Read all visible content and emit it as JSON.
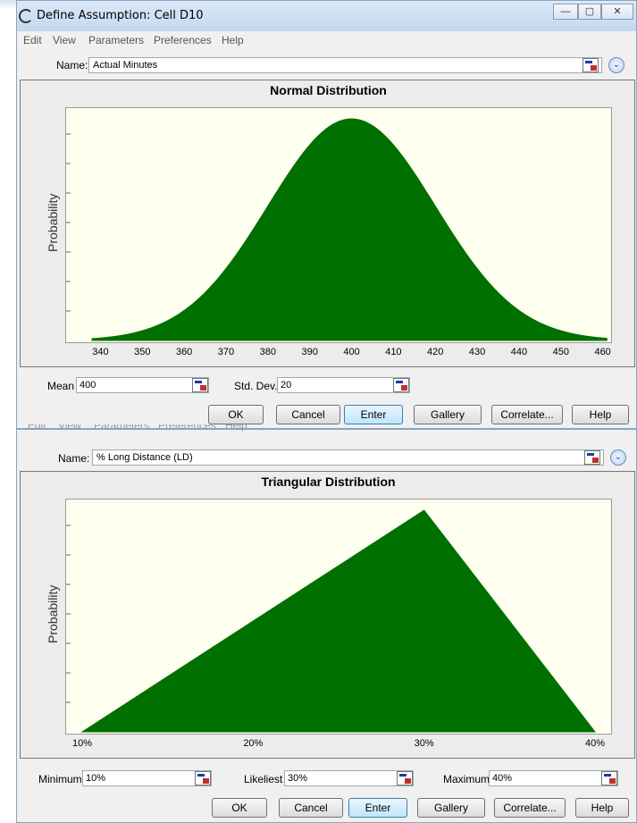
{
  "window1": {
    "title": "Define Assumption: Cell D10",
    "controls": {
      "minimize": "—",
      "maximize": "▢",
      "close": "✕"
    },
    "menu": [
      "Edit",
      "View",
      "Parameters",
      "Preferences",
      "Help"
    ],
    "name_label": "Name:",
    "name_value": "Actual Minutes",
    "chart": {
      "title": "Normal Distribution",
      "ylabel": "Probability",
      "xticks": [
        "340",
        "350",
        "360",
        "370",
        "380",
        "390",
        "400",
        "410",
        "420",
        "430",
        "440",
        "450",
        "460"
      ],
      "fill_color": "#007000",
      "plot_bg": "#fffff0"
    },
    "params": [
      {
        "label": "Mean",
        "value": "400"
      },
      {
        "label": "Std. Dev.",
        "value": "20"
      }
    ],
    "buttons": [
      "OK",
      "Cancel",
      "Enter",
      "Gallery",
      "Correlate...",
      "Help"
    ]
  },
  "window2": {
    "menu_partial": [
      "Edit",
      "View",
      "Parameters",
      "Preferences",
      "Help"
    ],
    "name_label": "Name:",
    "name_value": "% Long Distance (LD)",
    "chart": {
      "title": "Triangular Distribution",
      "ylabel": "Probability",
      "xticks": [
        "10%",
        "20%",
        "30%",
        "40%"
      ],
      "fill_color": "#007000",
      "plot_bg": "#fffff0"
    },
    "params": [
      {
        "label": "Minimum",
        "value": "10%"
      },
      {
        "label": "Likeliest",
        "value": "30%"
      },
      {
        "label": "Maximum",
        "value": "40%"
      }
    ],
    "buttons": [
      "OK",
      "Cancel",
      "Enter",
      "Gallery",
      "Correlate...",
      "Help"
    ]
  },
  "chart_data": [
    {
      "type": "area",
      "distribution": "normal",
      "title": "Normal Distribution",
      "ylabel": "Probability",
      "mean": 400,
      "std_dev": 20,
      "xlim": [
        337,
        462
      ],
      "xticks": [
        340,
        350,
        360,
        370,
        380,
        390,
        400,
        410,
        420,
        430,
        440,
        450,
        460
      ]
    },
    {
      "type": "area",
      "distribution": "triangular",
      "title": "Triangular Distribution",
      "ylabel": "Probability",
      "minimum": 10,
      "likeliest": 30,
      "maximum": 40,
      "xlim": [
        10,
        40
      ],
      "xticks": [
        10,
        20,
        30,
        40
      ]
    }
  ]
}
